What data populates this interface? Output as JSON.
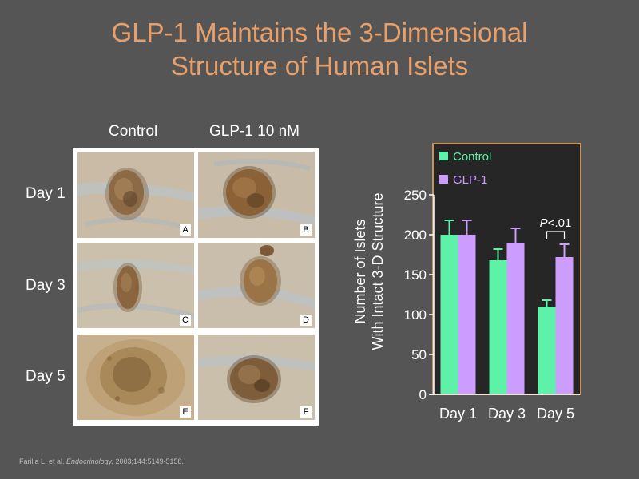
{
  "slide": {
    "title_line1": "GLP-1 Maintains the 3-Dimensional",
    "title_line2": "Structure of Human Islets",
    "citation_authors": "Farilla L, et al.",
    "citation_journal": "Endocrinology.",
    "citation_rest": "2003;144:5149-5158."
  },
  "micrographs": {
    "column_headers": [
      "Control",
      "GLP-1 10 nM"
    ],
    "row_headers": [
      "Day 1",
      "Day 3",
      "Day 5"
    ],
    "panel_letters": [
      "A",
      "B",
      "C",
      "D",
      "E",
      "F"
    ]
  },
  "colors": {
    "title": "#E8A06A",
    "control": "#5EF2A8",
    "glp1": "#CC9CFF",
    "chart_frame": "#C8935A",
    "chart_background": "#262626"
  },
  "chart_data": {
    "type": "bar",
    "categories": [
      "Day 1",
      "Day 3",
      "Day 5"
    ],
    "series": [
      {
        "name": "Control",
        "values": [
          200,
          168,
          110
        ],
        "errors": [
          18,
          14,
          8
        ]
      },
      {
        "name": "GLP-1",
        "values": [
          200,
          190,
          172
        ],
        "errors": [
          18,
          18,
          16
        ]
      }
    ],
    "ylabel_line1": "Number of Islets",
    "ylabel_line2": "With Intact 3-D Structure",
    "ylim": [
      0,
      250
    ],
    "yticks": [
      "0",
      "50",
      "100",
      "150",
      "200",
      "250"
    ],
    "legend_position": "top-left",
    "annotation": {
      "text_p": "P",
      "text_rest": "<.01",
      "category": "Day 5"
    },
    "grid": false
  }
}
